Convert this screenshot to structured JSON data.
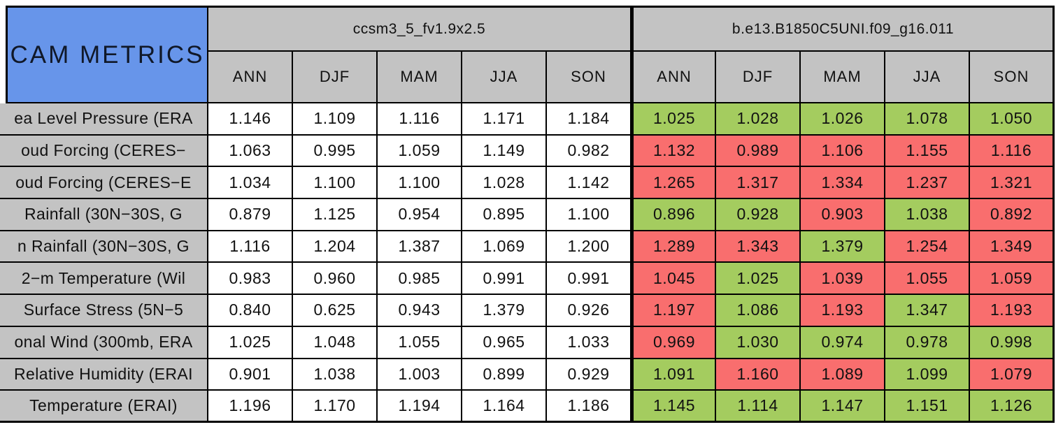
{
  "colors": {
    "title_bg": "#6795EA",
    "header_bg": "#C3C3C3",
    "good_green": "#A4CC5F",
    "bad_red": "#F96E6E",
    "neutral_white": "#FFFFFF",
    "border": "#000000"
  },
  "chart_data": {
    "type": "table",
    "title": "CAM METRICS",
    "column_groups": [
      {
        "name": "ccsm3_5_fv1.9x2.5",
        "seasons": [
          "ANN",
          "DJF",
          "MAM",
          "JJA",
          "SON"
        ]
      },
      {
        "name": "b.e13.B1850C5UNI.f09_g16.011",
        "seasons": [
          "ANN",
          "DJF",
          "MAM",
          "JJA",
          "SON"
        ]
      }
    ],
    "rows": [
      {
        "label": "ea Level Pressure (ERA",
        "group1_values": [
          "1.146",
          "1.109",
          "1.116",
          "1.171",
          "1.184"
        ],
        "group1_colors": [
          "white",
          "white",
          "white",
          "white",
          "white"
        ],
        "group2_values": [
          "1.025",
          "1.028",
          "1.026",
          "1.078",
          "1.050"
        ],
        "group2_colors": [
          "green",
          "green",
          "green",
          "green",
          "green"
        ]
      },
      {
        "label": "oud Forcing (CERES−",
        "group1_values": [
          "1.063",
          "0.995",
          "1.059",
          "1.149",
          "0.982"
        ],
        "group1_colors": [
          "white",
          "white",
          "white",
          "white",
          "white"
        ],
        "group2_values": [
          "1.132",
          "0.989",
          "1.106",
          "1.155",
          "1.116"
        ],
        "group2_colors": [
          "red",
          "red",
          "red",
          "red",
          "red"
        ]
      },
      {
        "label": "oud Forcing (CERES−E",
        "group1_values": [
          "1.034",
          "1.100",
          "1.100",
          "1.028",
          "1.142"
        ],
        "group1_colors": [
          "white",
          "white",
          "white",
          "white",
          "white"
        ],
        "group2_values": [
          "1.265",
          "1.317",
          "1.334",
          "1.237",
          "1.321"
        ],
        "group2_colors": [
          "red",
          "red",
          "red",
          "red",
          "red"
        ]
      },
      {
        "label": "Rainfall (30N−30S, G",
        "group1_values": [
          "0.879",
          "1.125",
          "0.954",
          "0.895",
          "1.100"
        ],
        "group1_colors": [
          "white",
          "white",
          "white",
          "white",
          "white"
        ],
        "group2_values": [
          "0.896",
          "0.928",
          "0.903",
          "1.038",
          "0.892"
        ],
        "group2_colors": [
          "green",
          "green",
          "red",
          "green",
          "red"
        ]
      },
      {
        "label": "n Rainfall (30N−30S, G",
        "group1_values": [
          "1.116",
          "1.204",
          "1.387",
          "1.069",
          "1.200"
        ],
        "group1_colors": [
          "white",
          "white",
          "white",
          "white",
          "white"
        ],
        "group2_values": [
          "1.289",
          "1.343",
          "1.379",
          "1.254",
          "1.349"
        ],
        "group2_colors": [
          "red",
          "red",
          "green",
          "red",
          "red"
        ]
      },
      {
        "label": "2−m Temperature (Wil",
        "group1_values": [
          "0.983",
          "0.960",
          "0.985",
          "0.991",
          "0.991"
        ],
        "group1_colors": [
          "white",
          "white",
          "white",
          "white",
          "white"
        ],
        "group2_values": [
          "1.045",
          "1.025",
          "1.039",
          "1.055",
          "1.059"
        ],
        "group2_colors": [
          "red",
          "green",
          "red",
          "red",
          "red"
        ]
      },
      {
        "label": "Surface Stress (5N−5",
        "group1_values": [
          "0.840",
          "0.625",
          "0.943",
          "1.379",
          "0.926"
        ],
        "group1_colors": [
          "white",
          "white",
          "white",
          "white",
          "white"
        ],
        "group2_values": [
          "1.197",
          "1.086",
          "1.193",
          "1.347",
          "1.193"
        ],
        "group2_colors": [
          "red",
          "green",
          "red",
          "green",
          "red"
        ]
      },
      {
        "label": "onal Wind (300mb, ERA",
        "group1_values": [
          "1.025",
          "1.048",
          "1.055",
          "0.965",
          "1.033"
        ],
        "group1_colors": [
          "white",
          "white",
          "white",
          "white",
          "white"
        ],
        "group2_values": [
          "0.969",
          "1.030",
          "0.974",
          "0.978",
          "0.998"
        ],
        "group2_colors": [
          "red",
          "green",
          "green",
          "green",
          "green"
        ]
      },
      {
        "label": "Relative Humidity (ERAI",
        "group1_values": [
          "0.901",
          "1.038",
          "1.003",
          "0.899",
          "0.929"
        ],
        "group1_colors": [
          "white",
          "white",
          "white",
          "white",
          "white"
        ],
        "group2_values": [
          "1.091",
          "1.160",
          "1.089",
          "1.099",
          "1.079"
        ],
        "group2_colors": [
          "green",
          "red",
          "red",
          "green",
          "red"
        ]
      },
      {
        "label": "Temperature (ERAI)",
        "group1_values": [
          "1.196",
          "1.170",
          "1.194",
          "1.164",
          "1.186"
        ],
        "group1_colors": [
          "white",
          "white",
          "white",
          "white",
          "white"
        ],
        "group2_values": [
          "1.145",
          "1.114",
          "1.147",
          "1.151",
          "1.126"
        ],
        "group2_colors": [
          "green",
          "green",
          "green",
          "green",
          "green"
        ]
      }
    ]
  }
}
